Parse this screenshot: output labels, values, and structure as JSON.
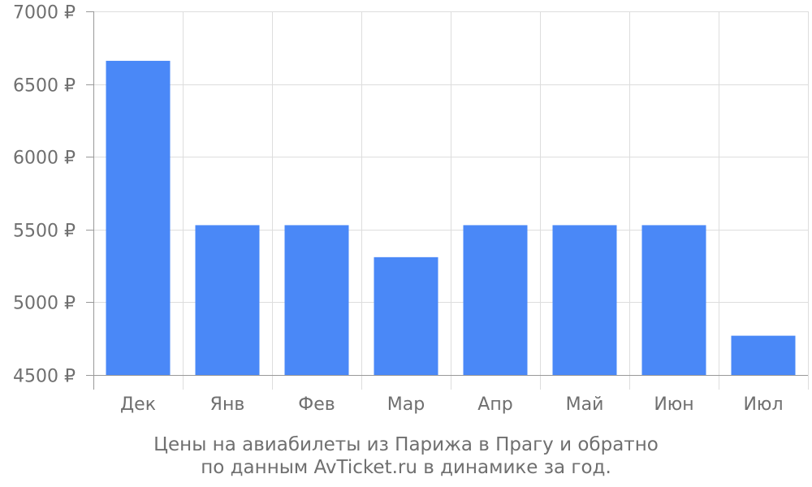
{
  "chart_data": {
    "type": "bar",
    "categories": [
      "Дек",
      "Янв",
      "Фев",
      "Мар",
      "Апр",
      "Май",
      "Июн",
      "Июл"
    ],
    "values": [
      6660,
      5530,
      5530,
      5310,
      5530,
      5530,
      5530,
      4770
    ],
    "ylim": [
      4500,
      7000
    ],
    "yticks": [
      4500,
      5000,
      5500,
      6000,
      6500,
      7000
    ],
    "ytick_labels": [
      "4500 ₽",
      "5000 ₽",
      "5500 ₽",
      "6000 ₽",
      "6500 ₽",
      "7000 ₽"
    ],
    "grid": true,
    "bar_color": "#4a88f7",
    "caption": [
      "Цены на авиабилеты из Парижа в Прагу и обратно",
      "по данным AvTicket.ru в динамике за год."
    ]
  },
  "colors": {
    "grid": "#dddddd",
    "axis": "#999999",
    "text": "#6f6f6f"
  }
}
